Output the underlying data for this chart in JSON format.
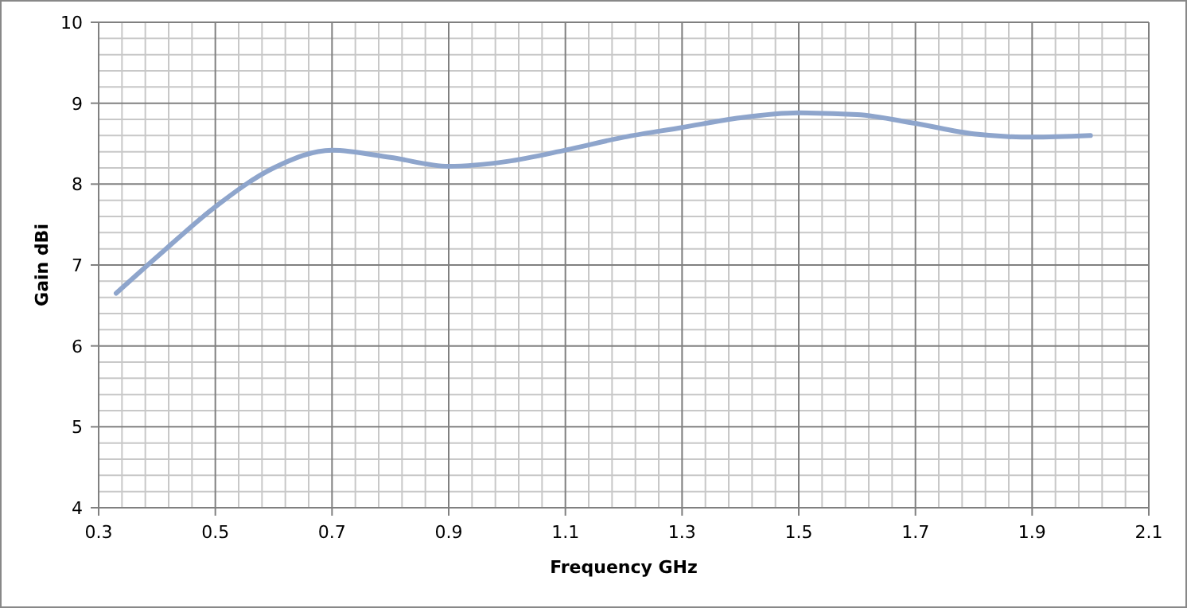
{
  "chart_data": {
    "type": "line",
    "xlabel": "Frequency GHz",
    "ylabel": "Gain dBi",
    "xlim": [
      0.3,
      2.1
    ],
    "xticks": [
      0.3,
      0.5,
      0.7,
      0.9,
      1.1,
      1.3,
      1.5,
      1.7,
      1.9,
      2.1
    ],
    "ylim": [
      4,
      10
    ],
    "yticks": [
      4,
      5,
      6,
      7,
      8,
      9,
      10
    ],
    "grid": true,
    "x": [
      0.33,
      0.4,
      0.5,
      0.6,
      0.7,
      0.8,
      0.9,
      1.0,
      1.1,
      1.2,
      1.3,
      1.4,
      1.5,
      1.6,
      1.7,
      1.8,
      1.9,
      2.0
    ],
    "series": [
      {
        "color": "#8ea5cc",
        "values": [
          6.65,
          7.1,
          7.72,
          8.2,
          8.42,
          8.33,
          8.22,
          8.28,
          8.42,
          8.58,
          8.7,
          8.82,
          8.88,
          8.86,
          8.75,
          8.62,
          8.58,
          8.6
        ]
      }
    ]
  }
}
